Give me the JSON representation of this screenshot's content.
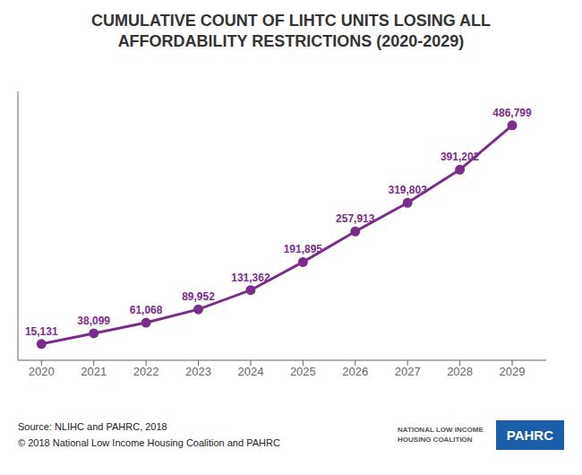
{
  "chart_data": {
    "type": "line",
    "title": "CUMULATIVE COUNT OF LIHTC UNITS LOSING ALL\nAFFORDABILITY RESTRICTIONS (2020-2029)",
    "x": [
      2020,
      2021,
      2022,
      2023,
      2024,
      2025,
      2026,
      2027,
      2028,
      2029
    ],
    "values": [
      15131,
      38099,
      61068,
      89952,
      131362,
      191895,
      257913,
      319803,
      391202,
      486799
    ],
    "value_labels": [
      "15,131",
      "38,099",
      "61,068",
      "89,952",
      "131,362",
      "191,895",
      "257,913",
      "319,803",
      "391,202",
      "486,799"
    ],
    "color": "#7b2d8b",
    "xlim": [
      2019.55,
      2029.65
    ],
    "xticks": [
      2020,
      2021,
      2022,
      2023,
      2024,
      2025,
      2026,
      2027,
      2028,
      2029
    ],
    "ylim": [
      -20000,
      560000
    ],
    "tick_labels": "x",
    "data_labels": true,
    "grid": false,
    "annotations": [
      "Source: NLIHC and PAHRC, 2018",
      "© 2018 National Low Income Housing Coalition and PAHRC",
      "NATIONAL LOW INCOME\nHOUSING COALITION",
      "PAHRC"
    ]
  }
}
